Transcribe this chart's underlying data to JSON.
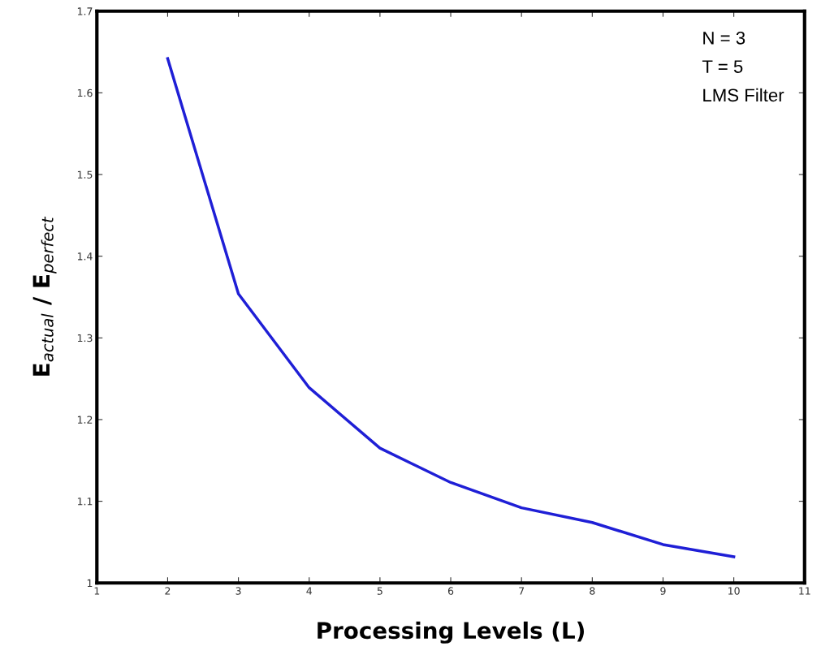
{
  "chart_data": {
    "type": "line",
    "xlabel": "Processing Levels (L)",
    "ylabel": "E$_{actual}$ / E$_{perfect}$",
    "annotations": [
      "N = 3",
      "T = 5",
      "LMS Filter"
    ],
    "x": [
      2,
      3,
      4,
      5,
      6,
      7,
      8,
      9,
      10
    ],
    "series": [
      {
        "color": "#1f1fd6",
        "values": [
          1.642,
          1.354,
          1.239,
          1.165,
          1.123,
          1.092,
          1.074,
          1.047,
          1.032
        ]
      }
    ],
    "xlim": [
      1,
      11
    ],
    "xticks": [
      1,
      2,
      3,
      4,
      5,
      6,
      7,
      8,
      9,
      10,
      11
    ],
    "ylim": [
      1,
      1.7
    ],
    "yticks": [
      1,
      1.1,
      1.2,
      1.3,
      1.4,
      1.5,
      1.6,
      1.7
    ],
    "grid": false,
    "legend": false,
    "marker": "none",
    "line_style": "solid"
  }
}
